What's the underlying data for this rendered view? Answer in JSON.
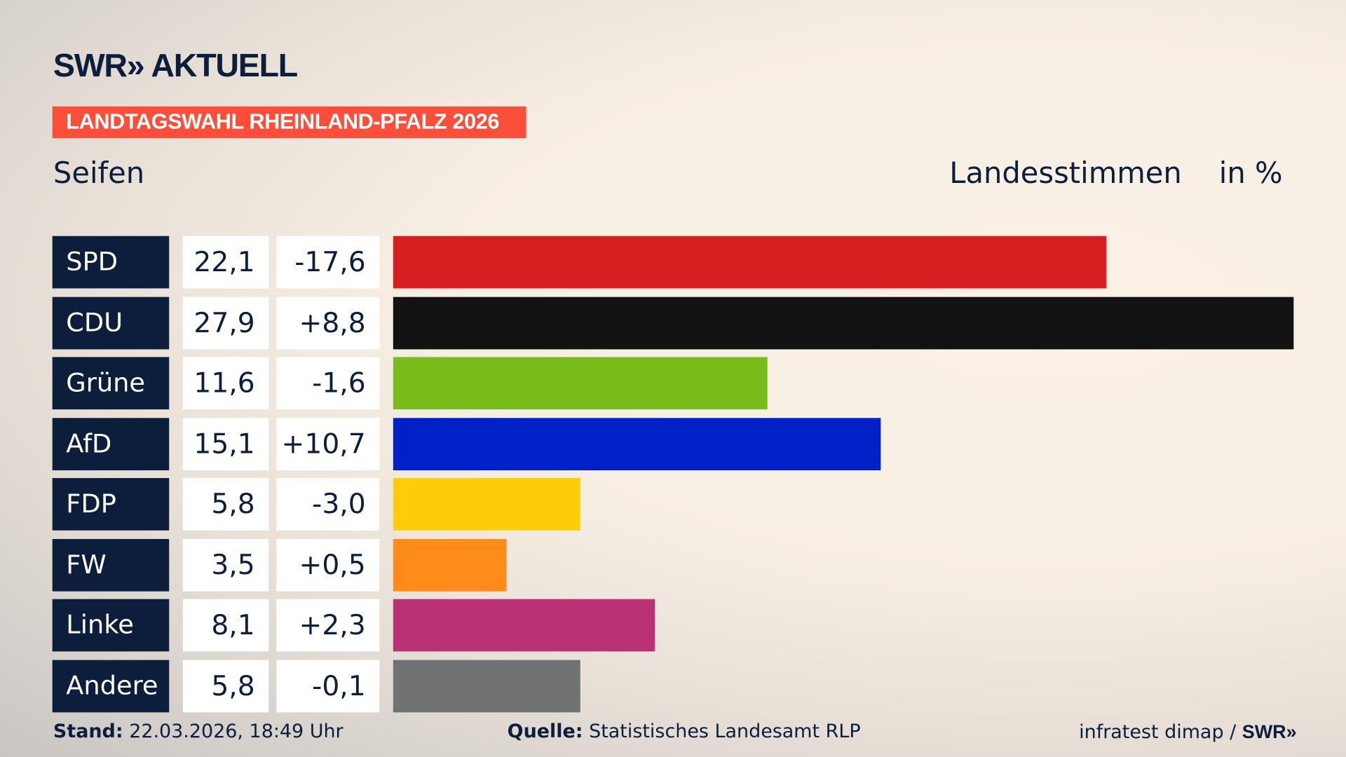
{
  "header": {
    "logo": "SWR» AKTUELL",
    "banner": "LANDTAGSWAHL RHEINLAND-PFALZ 2026",
    "region": "Seifen",
    "title": "Landesstimmen",
    "unit": "in %"
  },
  "chart_data": {
    "type": "bar",
    "orientation": "horizontal",
    "categories": [
      "SPD",
      "CDU",
      "Grüne",
      "AfD",
      "FDP",
      "FW",
      "Linke",
      "Andere"
    ],
    "values": [
      22.1,
      27.9,
      11.6,
      15.1,
      5.8,
      3.5,
      8.1,
      5.8
    ],
    "value_labels": [
      "22,1",
      "27,9",
      "11,6",
      "15,1",
      "5,8",
      "3,5",
      "8,1",
      "5,8"
    ],
    "diff_labels": [
      "-17,6",
      "+8,8",
      "-1,6",
      "+10,7",
      "-3,0",
      "+0,5",
      "+2,3",
      "-0,1"
    ],
    "diffs": [
      -17.6,
      8.8,
      -1.6,
      10.7,
      -3.0,
      0.5,
      2.3,
      -0.1
    ],
    "colors": [
      "#d71f20",
      "#121212",
      "#79bd1c",
      "#0021c8",
      "#ffcc0a",
      "#ff8c18",
      "#bb3175",
      "#717273"
    ],
    "title": "Landesstimmen",
    "ylabel": "in %",
    "xlim": [
      0,
      27.9
    ],
    "grid": false
  },
  "footer": {
    "stand_label": "Stand:",
    "stand_value": "22.03.2026, 18:49 Uhr",
    "source_label": "Quelle:",
    "source_value": "Statistisches Landesamt RLP",
    "credit": "infratest dimap / ",
    "credit_logo": "SWR»"
  }
}
